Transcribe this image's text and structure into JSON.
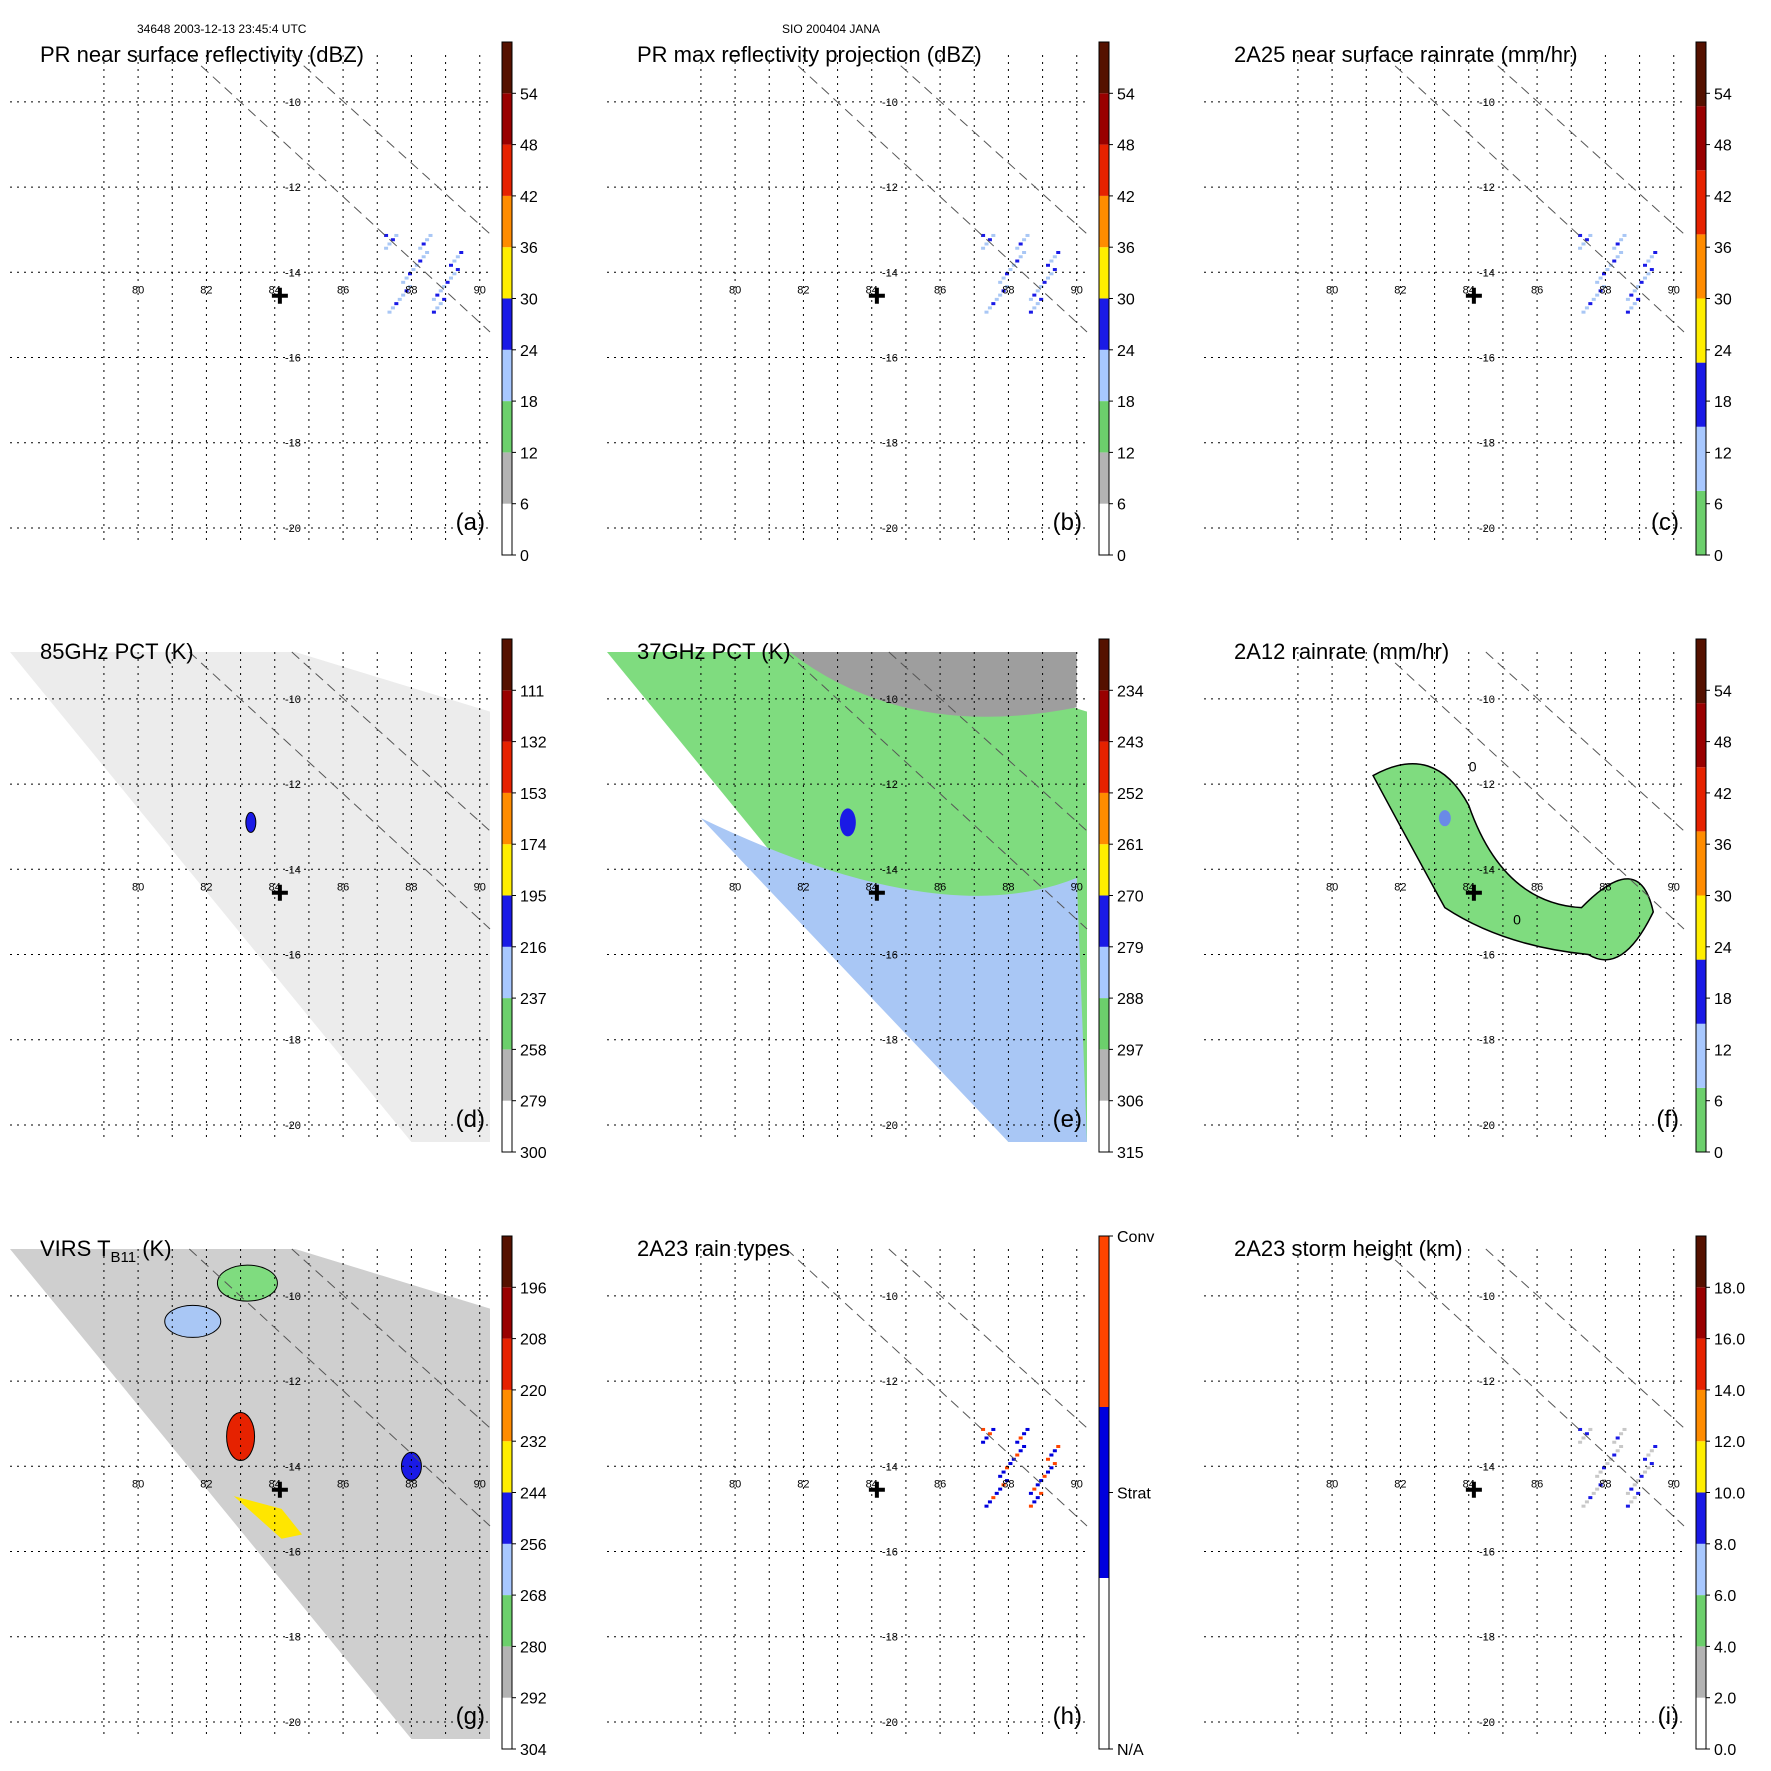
{
  "header": {
    "left": "34648 2003-12-13 23:45:4 UTC",
    "center": "SIO 200404 JANA"
  },
  "chart_data": [
    {
      "id": "a",
      "type": "heatmap",
      "title": "PR near surface reflectivity (dBZ)",
      "panel_label": "(a)",
      "colorbar": {
        "ticks": [
          "0",
          "6",
          "12",
          "18",
          "24",
          "30",
          "36",
          "42",
          "48",
          "54"
        ],
        "colors": [
          "#ffffff",
          "#b3b3b3",
          "#6ccf6c",
          "#a8c8ff",
          "#1a1ae6",
          "#ffee00",
          "#ff8c00",
          "#e62200",
          "#990000",
          "#551100"
        ]
      },
      "xlabels": [
        "80",
        "82",
        "84",
        "86",
        "88",
        "90"
      ],
      "ylabels": [
        "-10",
        "-12",
        "-14",
        "-16",
        "-18",
        "-20"
      ]
    },
    {
      "id": "b",
      "type": "heatmap",
      "title": "PR max reflectivity projection (dBZ)",
      "panel_label": "(b)",
      "colorbar": {
        "ticks": [
          "0",
          "6",
          "12",
          "18",
          "24",
          "30",
          "36",
          "42",
          "48",
          "54"
        ],
        "colors": [
          "#ffffff",
          "#b3b3b3",
          "#6ccf6c",
          "#a8c8ff",
          "#1a1ae6",
          "#ffee00",
          "#ff8c00",
          "#e62200",
          "#990000",
          "#551100"
        ]
      },
      "xlabels": [
        "80",
        "82",
        "84",
        "86",
        "88",
        "90"
      ],
      "ylabels": [
        "-10",
        "-12",
        "-14",
        "-16",
        "-18",
        "-20"
      ]
    },
    {
      "id": "c",
      "type": "heatmap",
      "title": "2A25 near surface rainrate (mm/hr)",
      "panel_label": "(c)",
      "colorbar": {
        "ticks": [
          "0",
          "6",
          "12",
          "18",
          "24",
          "30",
          "36",
          "42",
          "48",
          "54"
        ],
        "colors": [
          "#6ccf6c",
          "#a8c8ff",
          "#1a1ae6",
          "#ffee00",
          "#ff8c00",
          "#e62200",
          "#990000",
          "#551100"
        ]
      },
      "xlabels": [
        "80",
        "82",
        "84",
        "86",
        "88",
        "90"
      ],
      "ylabels": [
        "-10",
        "-12",
        "-14",
        "-16",
        "-18",
        "-20"
      ]
    },
    {
      "id": "d",
      "type": "heatmap",
      "title": "85GHz PCT (K)",
      "panel_label": "(d)",
      "colorbar": {
        "ticks": [
          "300",
          "279",
          "258",
          "237",
          "216",
          "195",
          "174",
          "153",
          "132",
          "111"
        ],
        "colors": [
          "#ffffff",
          "#b3b3b3",
          "#6ccf6c",
          "#a8c8ff",
          "#1a1ae6",
          "#ffee00",
          "#ff8c00",
          "#e62200",
          "#990000",
          "#551100"
        ]
      },
      "xlabels": [
        "80",
        "82",
        "84",
        "86",
        "88",
        "90"
      ],
      "ylabels": [
        "-10",
        "-12",
        "-14",
        "-16",
        "-18",
        "-20"
      ]
    },
    {
      "id": "e",
      "type": "heatmap",
      "title": "37GHz PCT (K)",
      "panel_label": "(e)",
      "colorbar": {
        "ticks": [
          "315",
          "306",
          "297",
          "288",
          "279",
          "270",
          "261",
          "252",
          "243",
          "234"
        ],
        "colors": [
          "#ffffff",
          "#b3b3b3",
          "#6ccf6c",
          "#a8c8ff",
          "#1a1ae6",
          "#ffee00",
          "#ff8c00",
          "#e62200",
          "#990000",
          "#551100"
        ]
      },
      "xlabels": [
        "80",
        "82",
        "84",
        "86",
        "88",
        "90"
      ],
      "ylabels": [
        "-10",
        "-12",
        "-14",
        "-16",
        "-18",
        "-20"
      ]
    },
    {
      "id": "f",
      "type": "heatmap",
      "title": "2A12 rainrate (mm/hr)",
      "panel_label": "(f)",
      "colorbar": {
        "ticks": [
          "0",
          "6",
          "12",
          "18",
          "24",
          "30",
          "36",
          "42",
          "48",
          "54"
        ],
        "colors": [
          "#6ccf6c",
          "#a8c8ff",
          "#1a1ae6",
          "#ffee00",
          "#ff8c00",
          "#e62200",
          "#990000",
          "#551100"
        ]
      },
      "contour_labels": [
        "0",
        "0"
      ],
      "xlabels": [
        "80",
        "82",
        "84",
        "86",
        "88",
        "90"
      ],
      "ylabels": [
        "-10",
        "-12",
        "-14",
        "-16",
        "-18",
        "-20"
      ]
    },
    {
      "id": "g",
      "type": "heatmap",
      "title": "VIRS T",
      "title_sub": "B11",
      "title_suffix": " (K)",
      "panel_label": "(g)",
      "colorbar": {
        "ticks": [
          "304",
          "292",
          "280",
          "268",
          "256",
          "244",
          "232",
          "220",
          "208",
          "196"
        ],
        "colors": [
          "#ffffff",
          "#b3b3b3",
          "#6ccf6c",
          "#a8c8ff",
          "#1a1ae6",
          "#ffee00",
          "#ff8c00",
          "#e62200",
          "#990000",
          "#551100"
        ]
      },
      "xlabels": [
        "80",
        "82",
        "84",
        "86",
        "88",
        "90"
      ],
      "ylabels": [
        "-10",
        "-12",
        "-14",
        "-16",
        "-18",
        "-20"
      ]
    },
    {
      "id": "h",
      "type": "heatmap",
      "title": "2A23 rain types",
      "panel_label": "(h)",
      "colorbar": {
        "ticks": [
          "N/A",
          "Strat",
          "Conv"
        ],
        "colors": [
          "#ffffff",
          "#0000dd",
          "#ff4400"
        ]
      },
      "xlabels": [
        "80",
        "82",
        "84",
        "86",
        "88",
        "90"
      ],
      "ylabels": [
        "-10",
        "-12",
        "-14",
        "-16",
        "-18",
        "-20"
      ]
    },
    {
      "id": "i",
      "type": "heatmap",
      "title": "2A23 storm height (km)",
      "panel_label": "(i)",
      "colorbar": {
        "ticks": [
          "0.0",
          "2.0",
          "4.0",
          "6.0",
          "8.0",
          "10.0",
          "12.0",
          "14.0",
          "16.0",
          "18.0"
        ],
        "colors": [
          "#ffffff",
          "#b3b3b3",
          "#6ccf6c",
          "#a8c8ff",
          "#1a1ae6",
          "#ffee00",
          "#ff8c00",
          "#e62200",
          "#990000",
          "#551100"
        ]
      },
      "xlabels": [
        "80",
        "82",
        "84",
        "86",
        "88",
        "90"
      ],
      "ylabels": [
        "-10",
        "-12",
        "-14",
        "-16",
        "-18",
        "-20"
      ]
    }
  ]
}
